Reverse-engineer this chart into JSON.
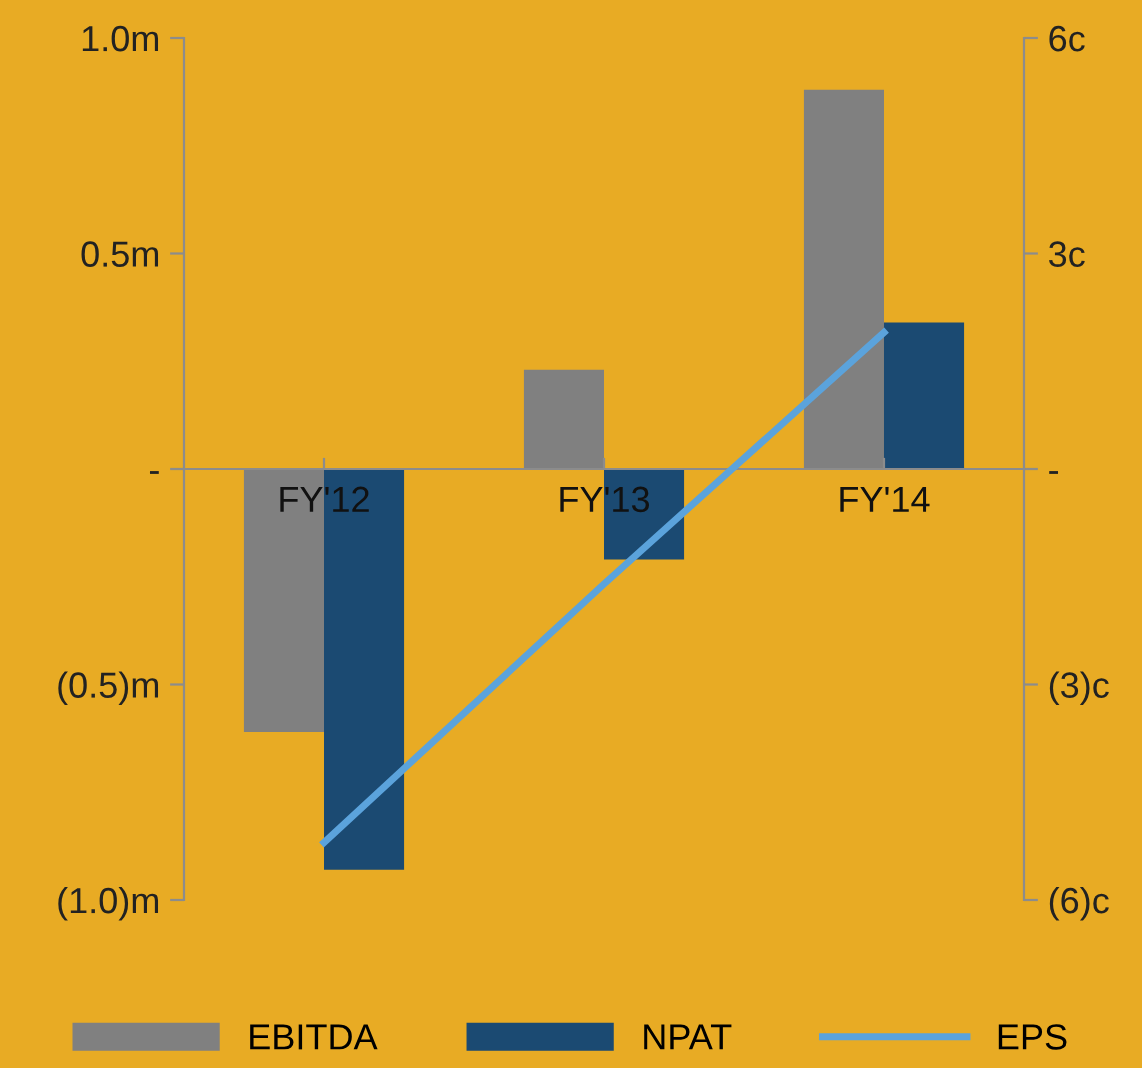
{
  "chart_data": {
    "type": "bar",
    "categories": [
      "FY'12",
      "FY'13",
      "FY'14"
    ],
    "series": [
      {
        "name": "EBITDA",
        "color": "#808080",
        "values": [
          -0.61,
          0.23,
          0.88
        ]
      },
      {
        "name": "NPAT",
        "color": "#1b4a72",
        "values": [
          -0.93,
          -0.21,
          0.34
        ]
      },
      {
        "name": "EPS",
        "type": "line",
        "axis": "y2",
        "color": "#5ba3dc",
        "values": [
          -5.2,
          -1.6,
          1.9
        ]
      }
    ],
    "ylim": [
      -1.0,
      1.0
    ],
    "yticks": [
      {
        "value": 1.0,
        "label": "1.0m"
      },
      {
        "value": 0.5,
        "label": "0.5m"
      },
      {
        "value": 0,
        "label": "-"
      },
      {
        "value": -0.5,
        "label": "(0.5)m"
      },
      {
        "value": -1.0,
        "label": "(1.0)m"
      }
    ],
    "y2lim": [
      -6,
      6
    ],
    "y2ticks": [
      {
        "value": 6,
        "label": "6c"
      },
      {
        "value": 3,
        "label": "3c"
      },
      {
        "value": 0,
        "label": "-"
      },
      {
        "value": -3,
        "label": "(3)c"
      },
      {
        "value": -6,
        "label": "(6)c"
      }
    ],
    "legend": "bottom",
    "grid": false
  }
}
